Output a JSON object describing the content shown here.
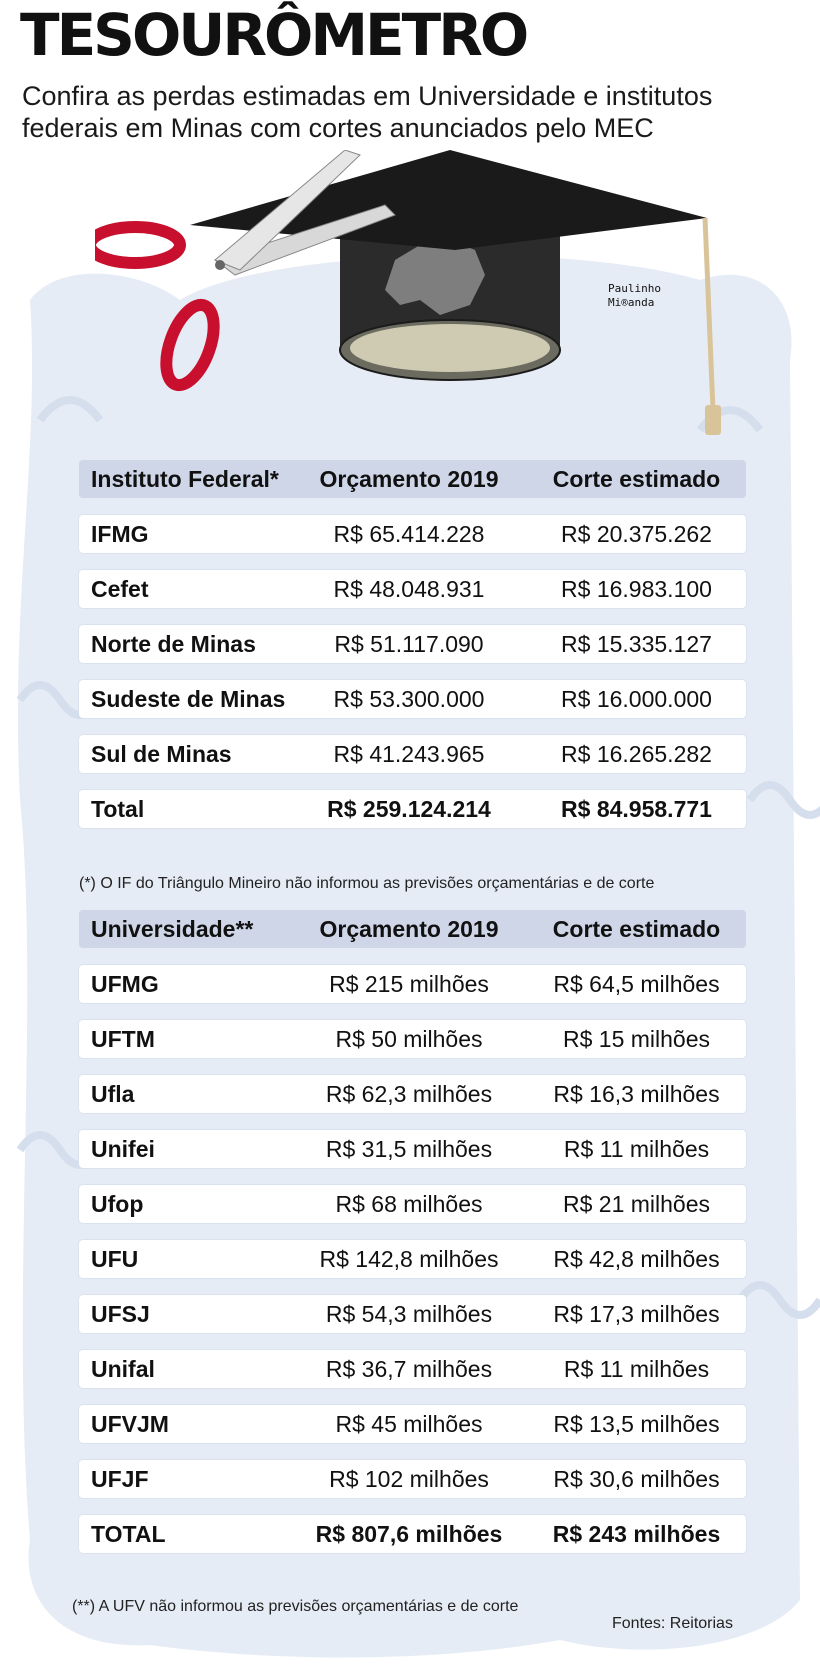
{
  "header": {
    "title": "TESOURÔMETRO",
    "subtitle": "Confira as perdas estimadas em Universidade e institutos federais em Minas com cortes anunciados pelo MEC"
  },
  "illustration": {
    "credit_line1": "Paulinho",
    "credit_line2": "Mi®anda"
  },
  "colors": {
    "header_row": "#cfd6e8",
    "background_swirl": "#e4eaf4",
    "scissors_handle": "#c8102e"
  },
  "chart_data": [
    {
      "type": "table",
      "columns": [
        "Instituto Federal*",
        "Orçamento 2019",
        "Corte estimado"
      ],
      "rows": [
        [
          "IFMG",
          "R$ 65.414.228",
          "R$ 20.375.262"
        ],
        [
          "Cefet",
          "R$ 48.048.931",
          "R$ 16.983.100"
        ],
        [
          "Norte de Minas",
          "R$ 51.117.090",
          "R$ 15.335.127"
        ],
        [
          "Sudeste de Minas",
          "R$ 53.300.000",
          "R$ 16.000.000"
        ],
        [
          "Sul de Minas",
          "R$ 41.243.965",
          "R$ 16.265.282"
        ]
      ],
      "total": [
        "Total",
        "R$ 259.124.214",
        "R$ 84.958.771"
      ],
      "footnote": "(*) O IF do Triângulo Mineiro não informou as previsões orçamentárias e de corte"
    },
    {
      "type": "table",
      "columns": [
        "Universidade**",
        "Orçamento 2019",
        "Corte estimado"
      ],
      "rows": [
        [
          "UFMG",
          "R$ 215 milhões",
          "R$ 64,5 milhões"
        ],
        [
          "UFTM",
          "R$ 50 milhões",
          "R$ 15 milhões"
        ],
        [
          "Ufla",
          "R$ 62,3 milhões",
          "R$ 16,3 milhões"
        ],
        [
          "Unifei",
          "R$ 31,5 milhões",
          "R$ 11 milhões"
        ],
        [
          "Ufop",
          "R$ 68 milhões",
          "R$ 21 milhões"
        ],
        [
          "UFU",
          "R$ 142,8 milhões",
          "R$ 42,8 milhões"
        ],
        [
          "UFSJ",
          "R$ 54,3 milhões",
          "R$ 17,3 milhões"
        ],
        [
          "Unifal",
          "R$ 36,7 milhões",
          "R$ 11 milhões"
        ],
        [
          "UFVJM",
          "R$ 45 milhões",
          "R$ 13,5 milhões"
        ],
        [
          "UFJF",
          "R$ 102 milhões",
          "R$ 30,6 milhões"
        ]
      ],
      "total": [
        "TOTAL",
        "R$ 807,6 milhões",
        "R$ 243 milhões"
      ],
      "footnote": "(**) A UFV não informou as previsões orçamentárias e de corte"
    }
  ],
  "sources": "Fontes: Reitorias"
}
